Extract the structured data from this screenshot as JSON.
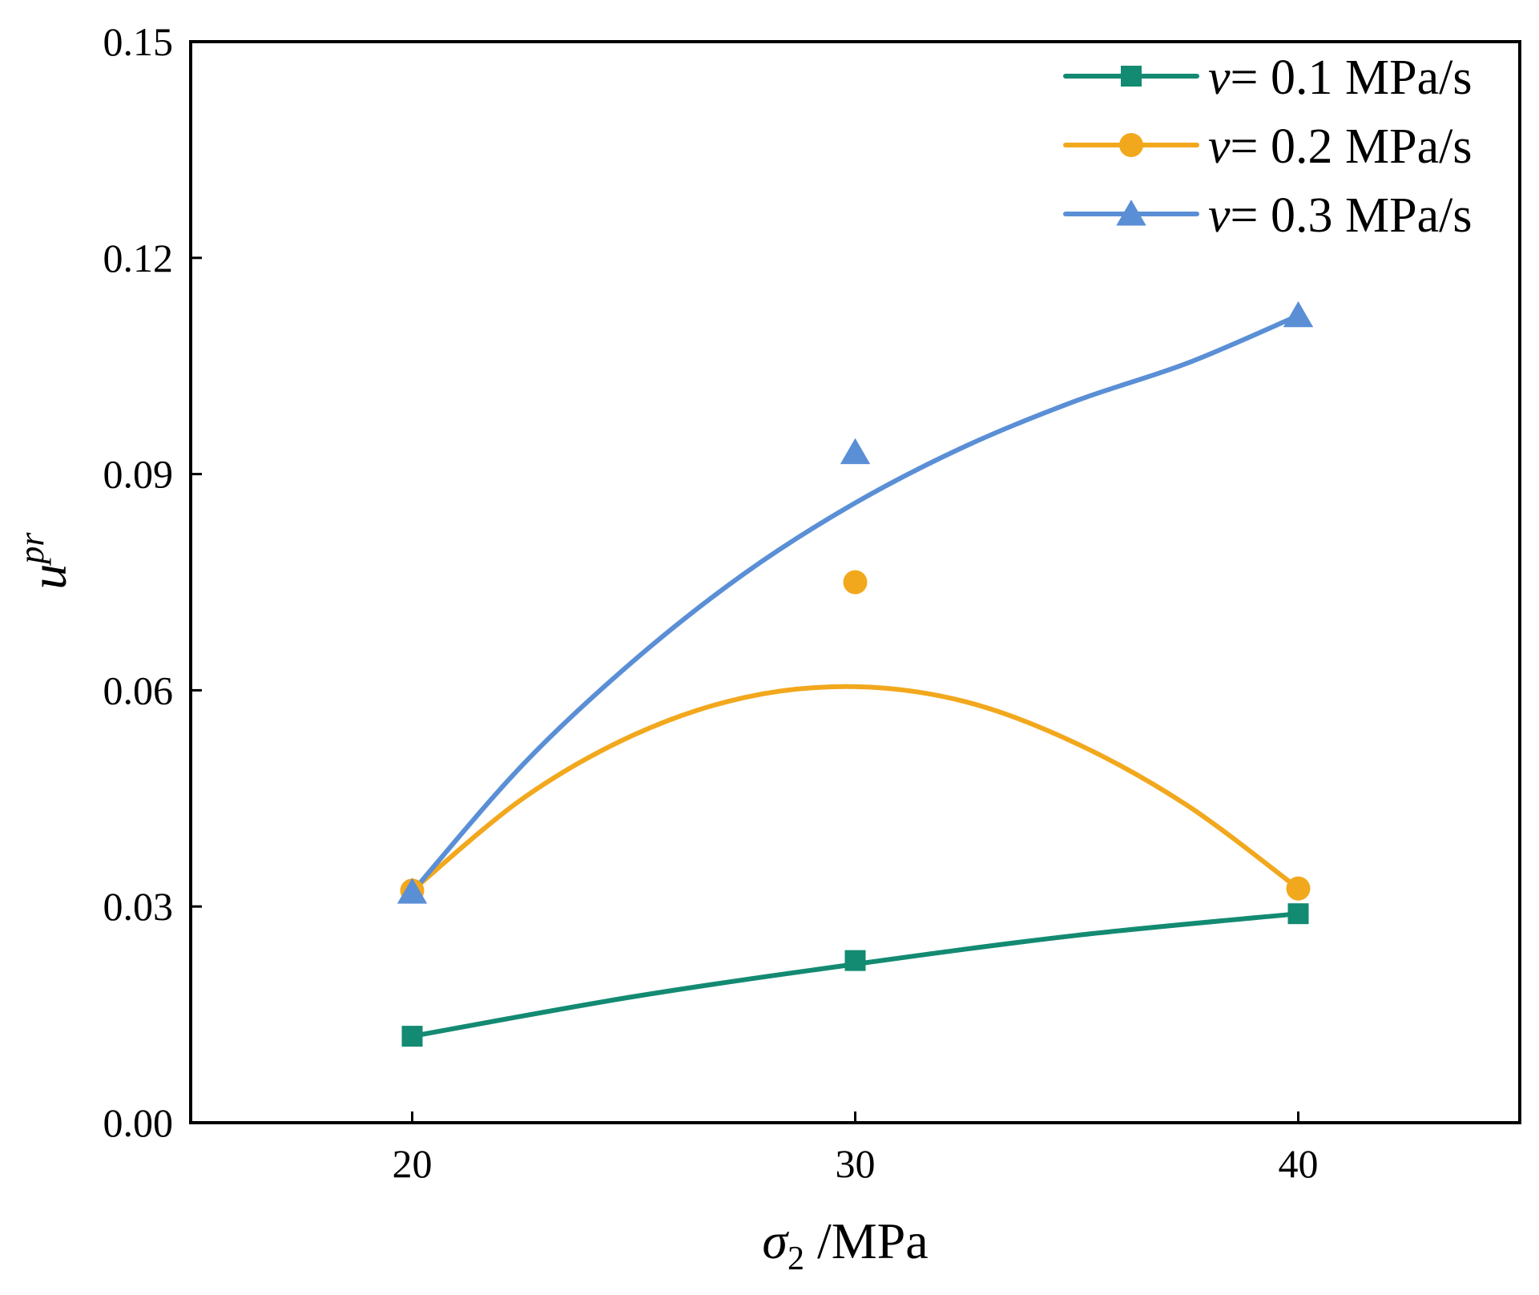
{
  "chart_data": {
    "type": "line",
    "title": "",
    "xlabel": {
      "symbol": "σ",
      "subscript": "2",
      "unit": " /MPa"
    },
    "ylabel": {
      "base": "u",
      "superscript": "pr"
    },
    "xlim": [
      15,
      45
    ],
    "ylim": [
      0,
      0.15
    ],
    "x_ticks": [
      20,
      30,
      40
    ],
    "x_tick_labels": [
      "20",
      "30",
      "40"
    ],
    "y_ticks": [
      0,
      0.03,
      0.06,
      0.09,
      0.12,
      0.15
    ],
    "y_tick_labels": [
      "0.00",
      "0.03",
      "0.06",
      "0.09",
      "0.12",
      "0.15"
    ],
    "legend_position": "top-right",
    "series": [
      {
        "name": "v= 0.1 MPa/s",
        "label_var": "v",
        "label_rest": "= 0.1 MPa/s",
        "marker": "square",
        "color": "#138a72",
        "x": [
          20,
          30,
          40
        ],
        "y": [
          0.012,
          0.0225,
          0.029
        ],
        "fit": "linear",
        "fit_x": [
          20,
          25,
          30,
          35,
          40
        ],
        "fit_y": [
          0.012,
          0.0175,
          0.022,
          0.026,
          0.029
        ]
      },
      {
        "name": "v= 0.2 MPa/s",
        "label_var": "v",
        "label_rest": "= 0.2 MPa/s",
        "marker": "circle",
        "color": "#f2a81d",
        "x": [
          20,
          30,
          40
        ],
        "y": [
          0.0322,
          0.075,
          0.0325
        ],
        "fit": "quadratic",
        "fit_x": [
          20,
          22.5,
          25,
          27.5,
          30,
          32.5,
          35,
          37.5,
          40
        ],
        "fit_y": [
          0.0322,
          0.045,
          0.0538,
          0.059,
          0.0605,
          0.0584,
          0.0526,
          0.044,
          0.0325
        ]
      },
      {
        "name": "v= 0.3 MPa/s",
        "label_var": "v",
        "label_rest": "= 0.3 MPa/s",
        "marker": "triangle",
        "color": "#5a8fd6",
        "x": [
          20,
          30,
          40
        ],
        "y": [
          0.032,
          0.093,
          0.112
        ],
        "fit": "smooth",
        "fit_x": [
          20,
          22.5,
          25,
          27.5,
          30,
          32.5,
          35,
          37.5,
          40
        ],
        "fit_y": [
          0.032,
          0.0497,
          0.0641,
          0.0762,
          0.086,
          0.0939,
          0.1002,
          0.1054,
          0.112
        ]
      }
    ]
  }
}
